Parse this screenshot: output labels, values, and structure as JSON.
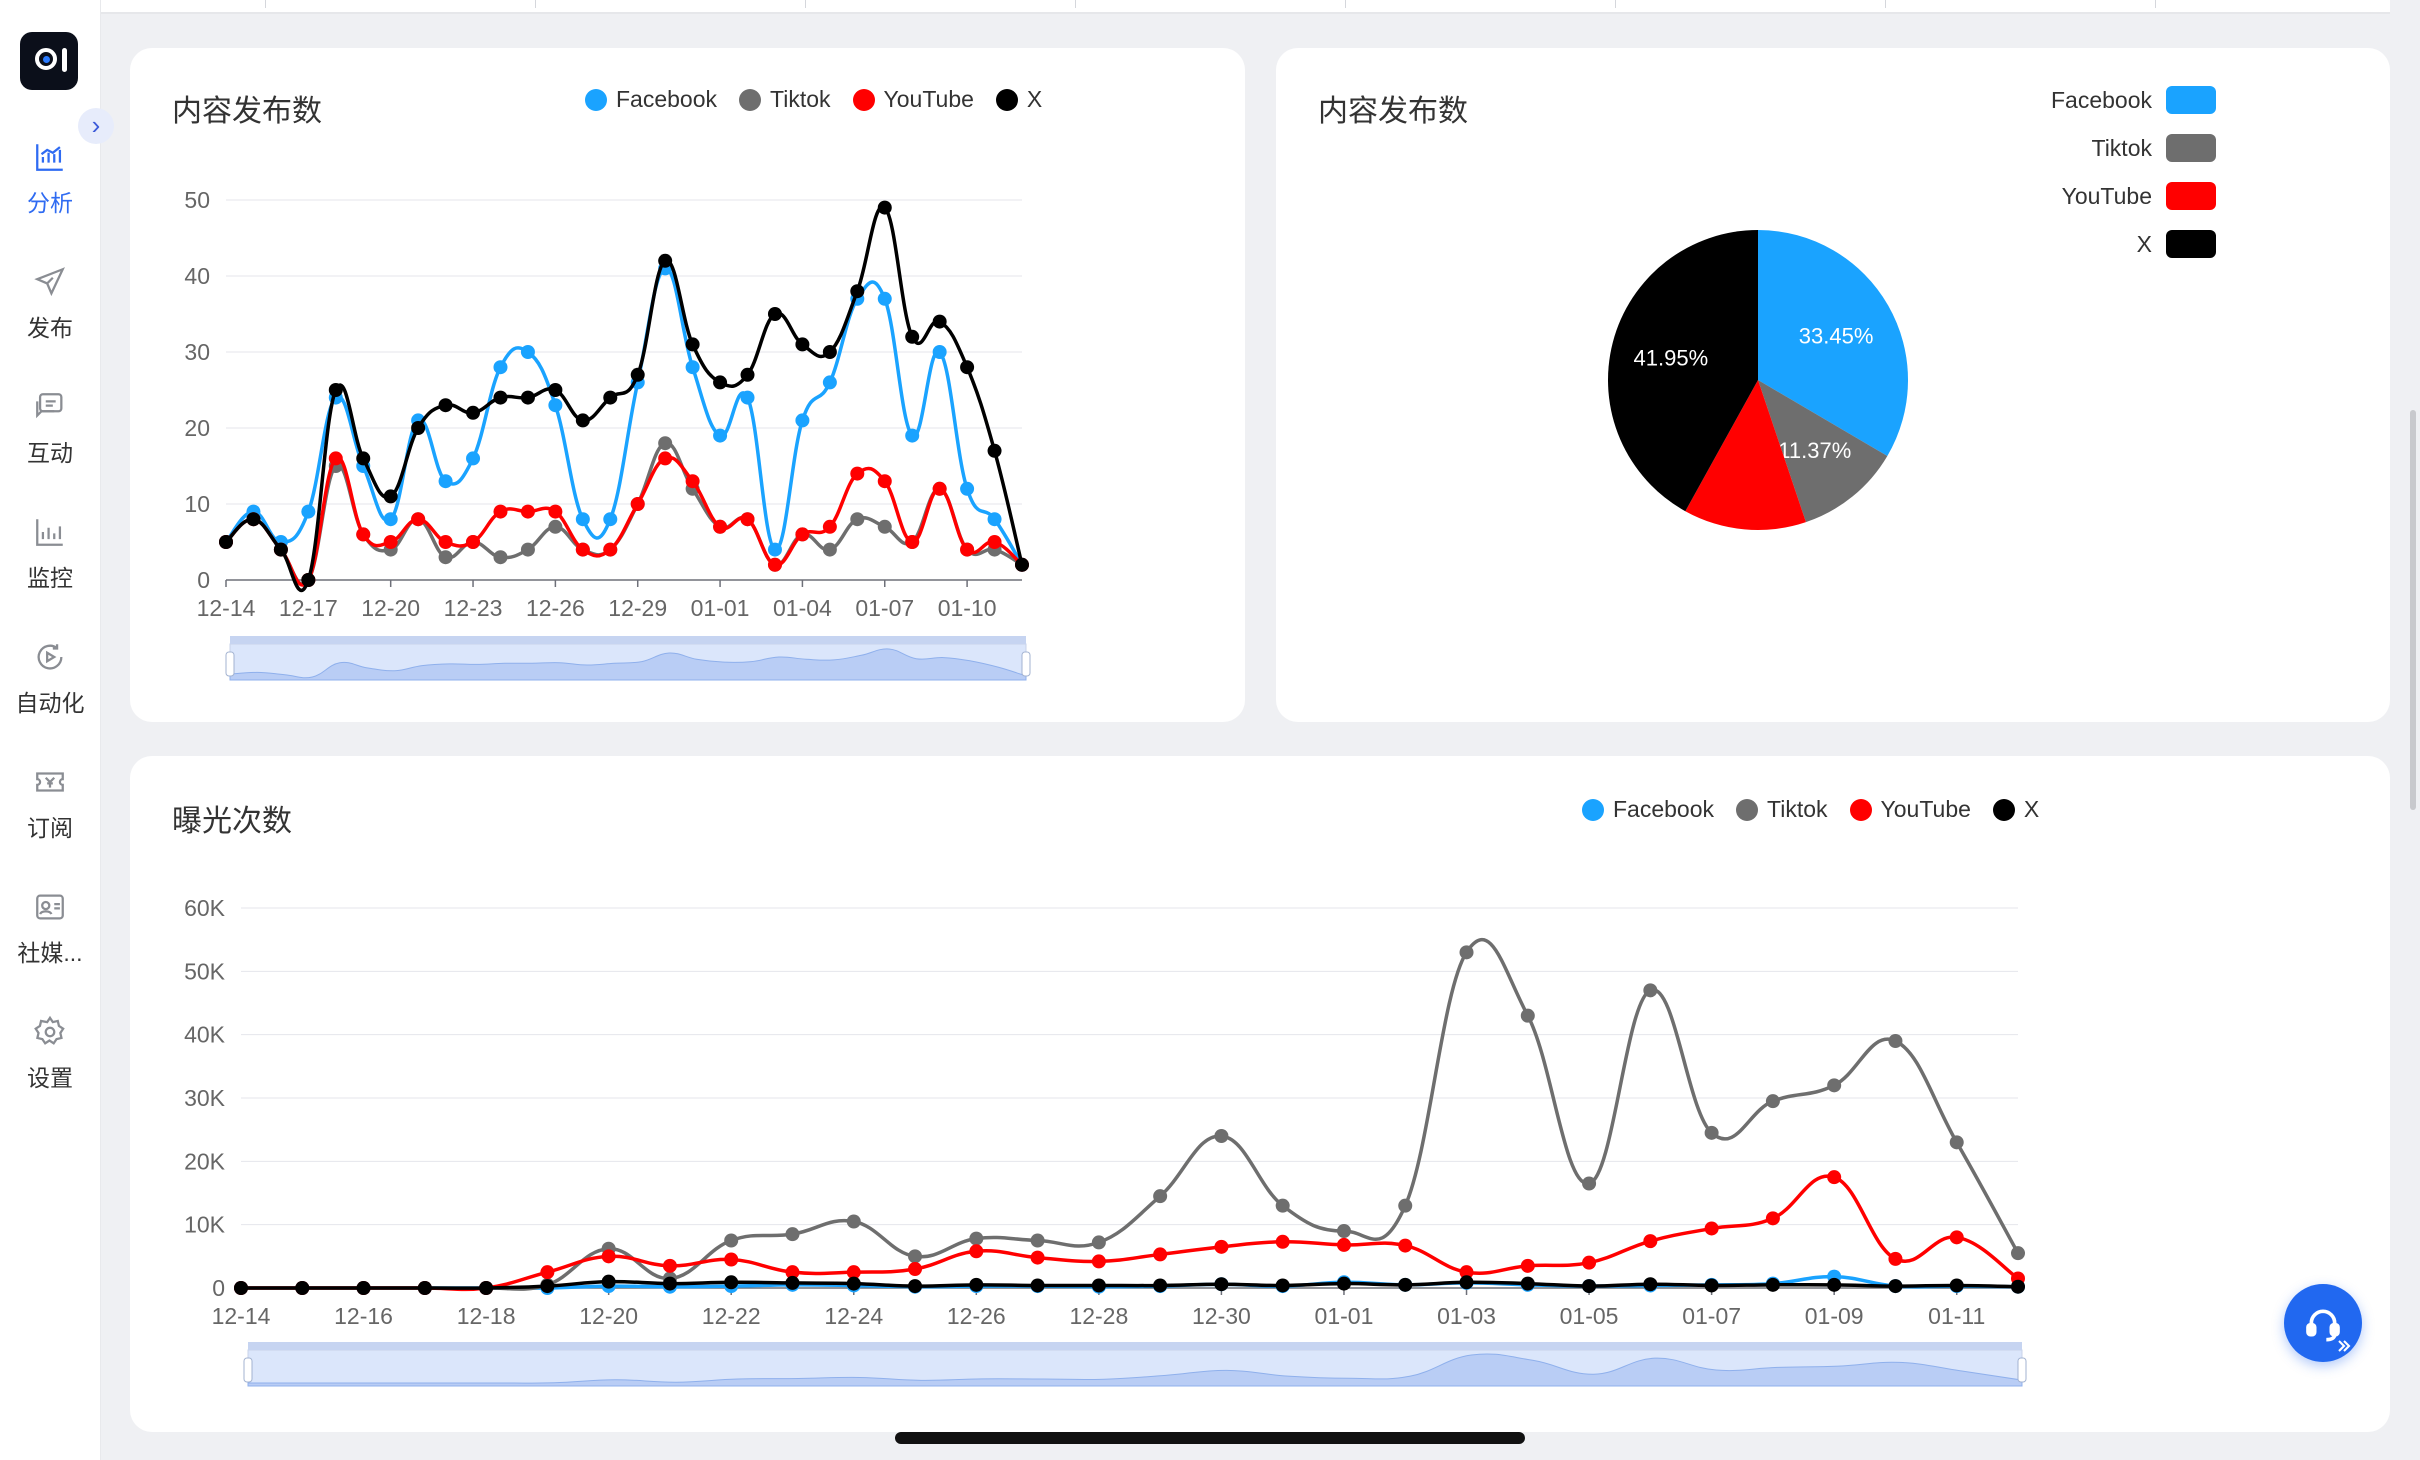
{
  "sidebar": {
    "items": [
      {
        "label": "分析",
        "icon": "analytics-icon",
        "active": true
      },
      {
        "label": "发布",
        "icon": "send-icon",
        "active": false
      },
      {
        "label": "互动",
        "icon": "chat-icon",
        "active": false
      },
      {
        "label": "监控",
        "icon": "monitor-chart-icon",
        "active": false
      },
      {
        "label": "自动化",
        "icon": "automation-play-icon",
        "active": false
      },
      {
        "label": "订阅",
        "icon": "ticket-icon",
        "active": false
      },
      {
        "label": "社媒...",
        "icon": "contact-card-icon",
        "active": false
      },
      {
        "label": "设置",
        "icon": "gear-icon",
        "active": false
      }
    ],
    "expand_icon": "chevron-right-icon"
  },
  "colors": {
    "facebook": "#1aa3ff",
    "tiktok": "#6e6e6e",
    "youtube": "#ff0000",
    "x": "#000000",
    "accent": "#2f6bf2"
  },
  "card1": {
    "title": "内容发布数"
  },
  "card2": {
    "title": "内容发布数"
  },
  "card3": {
    "title": "曝光次数"
  },
  "legend": [
    "Facebook",
    "Tiktok",
    "YouTube",
    "X"
  ],
  "chart_data": [
    {
      "type": "line",
      "title": "内容发布数",
      "x": [
        "12-14",
        "12-15",
        "12-16",
        "12-17",
        "12-18",
        "12-19",
        "12-20",
        "12-21",
        "12-22",
        "12-23",
        "12-24",
        "12-25",
        "12-26",
        "12-27",
        "12-28",
        "12-29",
        "12-30",
        "12-31",
        "01-01",
        "01-02",
        "01-03",
        "01-04",
        "01-05",
        "01-06",
        "01-07",
        "01-08",
        "01-09",
        "01-10",
        "01-11",
        "01-12"
      ],
      "x_tick_labels": [
        "12-14",
        "12-17",
        "12-20",
        "12-23",
        "12-26",
        "12-29",
        "01-01",
        "01-04",
        "01-07",
        "01-10"
      ],
      "ylim": [
        0,
        50
      ],
      "y_ticks": [
        0,
        10,
        20,
        30,
        40,
        50
      ],
      "grid": true,
      "legend_position": "top",
      "series": [
        {
          "name": "Facebook",
          "values": [
            5,
            9,
            5,
            9,
            24,
            15,
            8,
            21,
            13,
            16,
            28,
            30,
            23,
            8,
            8,
            26,
            41,
            28,
            19,
            24,
            4,
            21,
            26,
            37,
            37,
            19,
            30,
            12,
            8,
            2
          ]
        },
        {
          "name": "Tiktok",
          "values": [
            5,
            8,
            4,
            0,
            15,
            6,
            4,
            8,
            3,
            5,
            3,
            4,
            7,
            4,
            4,
            10,
            18,
            12,
            7,
            8,
            2,
            6,
            4,
            8,
            7,
            5,
            12,
            4,
            4,
            2
          ]
        },
        {
          "name": "YouTube",
          "values": [
            5,
            8,
            4,
            0,
            16,
            6,
            5,
            8,
            5,
            5,
            9,
            9,
            9,
            4,
            4,
            10,
            16,
            13,
            7,
            8,
            2,
            6,
            7,
            14,
            13,
            5,
            12,
            4,
            5,
            2
          ]
        },
        {
          "name": "X",
          "values": [
            5,
            8,
            4,
            0,
            25,
            16,
            11,
            20,
            23,
            22,
            24,
            24,
            25,
            21,
            24,
            27,
            42,
            31,
            26,
            27,
            35,
            31,
            30,
            38,
            49,
            32,
            34,
            28,
            17,
            2
          ]
        }
      ]
    },
    {
      "type": "pie",
      "title": "内容发布数",
      "legend_position": "top-right",
      "slices": [
        {
          "name": "Facebook",
          "value": 33.45,
          "label": "33.45%"
        },
        {
          "name": "Tiktok",
          "value": 11.37,
          "label": "11.37%"
        },
        {
          "name": "YouTube",
          "value": 13.23,
          "label": ""
        },
        {
          "name": "X",
          "value": 41.95,
          "label": "41.95%"
        }
      ]
    },
    {
      "type": "line",
      "title": "曝光次数",
      "x": [
        "12-14",
        "12-15",
        "12-16",
        "12-17",
        "12-18",
        "12-19",
        "12-20",
        "12-21",
        "12-22",
        "12-23",
        "12-24",
        "12-25",
        "12-26",
        "12-27",
        "12-28",
        "12-29",
        "12-30",
        "12-31",
        "01-01",
        "01-02",
        "01-03",
        "01-04",
        "01-05",
        "01-06",
        "01-07",
        "01-08",
        "01-09",
        "01-10",
        "01-11",
        "01-12"
      ],
      "x_tick_labels": [
        "12-14",
        "12-16",
        "12-18",
        "12-20",
        "12-22",
        "12-24",
        "12-26",
        "12-28",
        "12-30",
        "01-01",
        "01-03",
        "01-05",
        "01-07",
        "01-09",
        "01-11"
      ],
      "y_tick_labels": [
        "0",
        "10K",
        "20K",
        "30K",
        "40K",
        "50K",
        "60K"
      ],
      "ylim": [
        0,
        60000
      ],
      "grid": true,
      "legend_position": "top-right",
      "series": [
        {
          "name": "Facebook",
          "values": [
            0,
            0,
            0,
            0,
            0,
            0,
            300,
            200,
            300,
            500,
            400,
            200,
            300,
            300,
            200,
            300,
            600,
            300,
            900,
            500,
            800,
            500,
            300,
            400,
            500,
            700,
            1800,
            300,
            300,
            200
          ]
        },
        {
          "name": "Tiktok",
          "values": [
            0,
            0,
            0,
            0,
            0,
            500,
            6200,
            1500,
            7500,
            8500,
            10500,
            5000,
            7800,
            7500,
            7200,
            14500,
            24000,
            13000,
            9000,
            13000,
            53000,
            43000,
            16500,
            47000,
            24500,
            29500,
            32000,
            39000,
            23000,
            5500
          ]
        },
        {
          "name": "YouTube",
          "values": [
            0,
            0,
            0,
            0,
            0,
            2500,
            5000,
            3500,
            4500,
            2500,
            2500,
            3000,
            5800,
            4800,
            4200,
            5300,
            6500,
            7300,
            6800,
            6700,
            2500,
            3500,
            4000,
            7400,
            9400,
            11000,
            17500,
            4600,
            8000,
            1500
          ]
        },
        {
          "name": "X",
          "values": [
            0,
            0,
            0,
            0,
            0,
            300,
            1000,
            700,
            900,
            800,
            700,
            300,
            500,
            400,
            400,
            400,
            600,
            400,
            700,
            500,
            900,
            700,
            300,
            600,
            400,
            500,
            500,
            300,
            400,
            200
          ]
        }
      ]
    }
  ]
}
